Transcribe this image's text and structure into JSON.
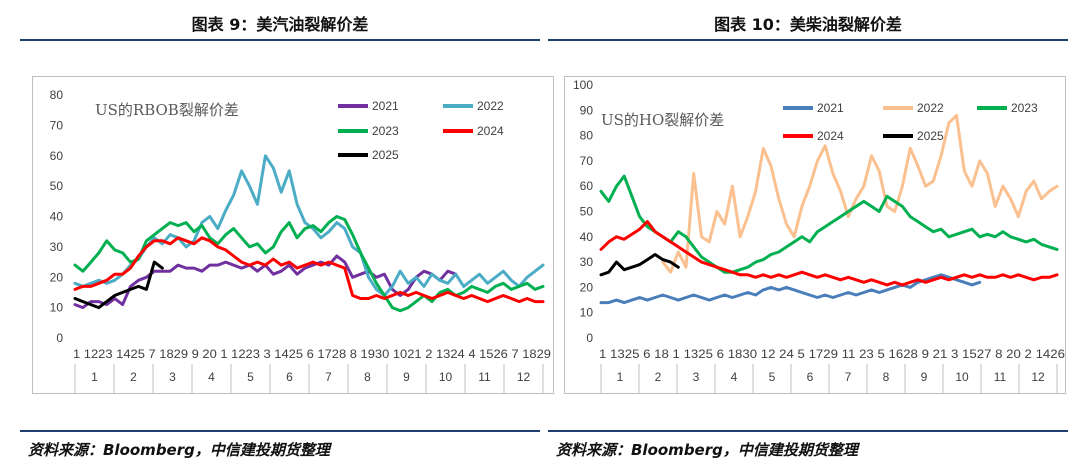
{
  "left": {
    "title": "图表 9：美汽油裂解价差",
    "source": "资料来源：Bloomberg，中信建投期货整理"
  },
  "right": {
    "title": "图表 10：美柴油裂解价差",
    "source": "资料来源：Bloomberg，中信建投期货整理"
  },
  "chart_data": [
    {
      "type": "line",
      "title": "US的RBOB裂解价差",
      "ylim": [
        0,
        80
      ],
      "yticks": [
        0,
        10,
        20,
        30,
        40,
        50,
        60,
        70,
        80
      ],
      "grid": false,
      "legend_position": "top-right",
      "x_tick_labels": [
        "1",
        "12",
        "23",
        "14",
        "25",
        "7",
        "18",
        "29",
        "9",
        "20",
        "1",
        "12",
        "23",
        "3",
        "14",
        "25",
        "6",
        "17",
        "28",
        "8",
        "19",
        "30",
        "10",
        "21",
        "2",
        "13",
        "24",
        "4",
        "15",
        "26",
        "7",
        "18",
        "29"
      ],
      "x_tick_text": "1 1223 1425 7 1829 9 20 1 1223 3 1425 6 1728 8 1930 1021 2 1324 4 1526 7 1829",
      "months": [
        "1",
        "2",
        "3",
        "4",
        "5",
        "6",
        "7",
        "8",
        "9",
        "10",
        "11",
        "12"
      ],
      "series": [
        {
          "name": "2021",
          "color": "#7030a0",
          "values": [
            11,
            10,
            12,
            12,
            11,
            13,
            11,
            17,
            19,
            20,
            22,
            22,
            22,
            24,
            23,
            23,
            22,
            24,
            24,
            25,
            24,
            23,
            24,
            22,
            24,
            21,
            22,
            24,
            21,
            23,
            24,
            25,
            24,
            27,
            25,
            20,
            21,
            22,
            20,
            21,
            16,
            14,
            16,
            20,
            22,
            21,
            19,
            22,
            21,
            null,
            null,
            null,
            null,
            null,
            null,
            null,
            null,
            null,
            null,
            null
          ]
        },
        {
          "name": "2022",
          "color": "#4bacc6",
          "values": [
            18,
            17,
            18,
            19,
            18,
            19,
            21,
            24,
            26,
            30,
            33,
            31,
            34,
            33,
            30,
            32,
            38,
            40,
            36,
            42,
            47,
            55,
            50,
            44,
            60,
            56,
            48,
            55,
            44,
            38,
            36,
            33,
            35,
            38,
            36,
            30,
            28,
            20,
            16,
            14,
            17,
            22,
            18,
            20,
            17,
            21,
            19,
            18,
            21,
            17,
            19,
            21,
            18,
            20,
            22,
            19,
            17,
            20,
            22,
            24
          ]
        },
        {
          "name": "2023",
          "color": "#00b050",
          "values": [
            24,
            22,
            25,
            28,
            32,
            29,
            28,
            25,
            26,
            32,
            34,
            36,
            38,
            37,
            38,
            35,
            37,
            33,
            31,
            34,
            36,
            33,
            30,
            31,
            28,
            30,
            35,
            38,
            33,
            36,
            37,
            35,
            38,
            40,
            39,
            34,
            28,
            23,
            18,
            14,
            10,
            9,
            10,
            12,
            14,
            12,
            15,
            16,
            14,
            15,
            17,
            16,
            15,
            17,
            18,
            16,
            17,
            18,
            16,
            17
          ]
        },
        {
          "name": "2024",
          "color": "#ff0000",
          "values": [
            16,
            17,
            17,
            18,
            19,
            21,
            21,
            23,
            27,
            30,
            32,
            32,
            31,
            33,
            32,
            31,
            33,
            32,
            30,
            29,
            27,
            25,
            24,
            25,
            24,
            26,
            24,
            25,
            23,
            24,
            25,
            24,
            25,
            24,
            23,
            14,
            13,
            13,
            14,
            13,
            14,
            15,
            14,
            15,
            14,
            13,
            14,
            15,
            14,
            13,
            14,
            13,
            12,
            13,
            14,
            13,
            12,
            13,
            12,
            12
          ]
        },
        {
          "name": "2025",
          "color": "#000000",
          "values": [
            13,
            12,
            11,
            10,
            12,
            14,
            15,
            16,
            17,
            16,
            25,
            23,
            null,
            null,
            null,
            null,
            null,
            null,
            null,
            null,
            null,
            null,
            null,
            null,
            null,
            null,
            null,
            null,
            null,
            null,
            null,
            null,
            null,
            null,
            null,
            null,
            null,
            null,
            null,
            null,
            null,
            null,
            null,
            null,
            null,
            null,
            null,
            null,
            null,
            null,
            null,
            null,
            null,
            null,
            null,
            null,
            null,
            null,
            null,
            null
          ]
        }
      ]
    },
    {
      "type": "line",
      "title": "US的HO裂解价差",
      "ylim": [
        0,
        100
      ],
      "yticks": [
        0,
        10,
        20,
        30,
        40,
        50,
        60,
        70,
        80,
        90,
        100
      ],
      "grid": false,
      "legend_position": "top",
      "x_tick_text": "1 1325 6 18 1 1325 6 1830 12 24 5 1729 11 23 5 1628 9 21 3 1527 8 20 2 1426",
      "months": [
        "1",
        "2",
        "3",
        "4",
        "5",
        "6",
        "7",
        "8",
        "9",
        "10",
        "11",
        "12"
      ],
      "series": [
        {
          "name": "2021",
          "color": "#4a7ebb",
          "values": [
            14,
            14,
            15,
            14,
            15,
            16,
            15,
            16,
            17,
            16,
            15,
            16,
            17,
            16,
            15,
            16,
            17,
            16,
            17,
            18,
            17,
            19,
            20,
            19,
            20,
            19,
            18,
            17,
            16,
            17,
            16,
            17,
            18,
            17,
            18,
            19,
            18,
            19,
            20,
            21,
            20,
            22,
            23,
            24,
            25,
            24,
            23,
            22,
            21,
            22,
            null,
            null,
            null,
            null,
            null,
            null,
            null,
            null,
            null,
            null
          ]
        },
        {
          "name": "2022",
          "color": "#fac090",
          "values": [
            null,
            null,
            null,
            null,
            null,
            null,
            null,
            null,
            30,
            26,
            34,
            28,
            65,
            40,
            38,
            50,
            45,
            60,
            40,
            48,
            58,
            75,
            68,
            55,
            45,
            40,
            52,
            60,
            70,
            76,
            65,
            58,
            48,
            55,
            60,
            72,
            66,
            52,
            50,
            60,
            75,
            68,
            60,
            62,
            72,
            85,
            88,
            66,
            60,
            70,
            65,
            52,
            60,
            55,
            48,
            58,
            62,
            55,
            58,
            60
          ]
        },
        {
          "name": "2023",
          "color": "#00b050",
          "values": [
            58,
            54,
            60,
            64,
            56,
            48,
            44,
            42,
            40,
            38,
            42,
            40,
            36,
            32,
            30,
            28,
            26,
            26,
            27,
            28,
            30,
            31,
            33,
            34,
            36,
            38,
            40,
            38,
            42,
            44,
            46,
            48,
            50,
            52,
            54,
            52,
            50,
            56,
            54,
            52,
            48,
            46,
            44,
            42,
            43,
            40,
            41,
            42,
            43,
            40,
            41,
            40,
            42,
            40,
            39,
            38,
            39,
            37,
            36,
            35
          ]
        },
        {
          "name": "2024",
          "color": "#ff0000",
          "values": [
            35,
            38,
            40,
            39,
            41,
            43,
            46,
            42,
            40,
            38,
            36,
            34,
            32,
            30,
            29,
            28,
            27,
            26,
            25,
            25,
            24,
            25,
            24,
            25,
            24,
            25,
            26,
            25,
            24,
            25,
            24,
            23,
            24,
            23,
            22,
            23,
            22,
            21,
            22,
            21,
            22,
            23,
            22,
            23,
            24,
            23,
            24,
            25,
            24,
            25,
            24,
            24,
            25,
            24,
            25,
            24,
            23,
            24,
            24,
            25
          ]
        },
        {
          "name": "2025",
          "color": "#000000",
          "values": [
            25,
            26,
            30,
            27,
            28,
            29,
            31,
            33,
            31,
            30,
            28,
            null,
            null,
            null,
            null,
            null,
            null,
            null,
            null,
            null,
            null,
            null,
            null,
            null,
            null,
            null,
            null,
            null,
            null,
            null,
            null,
            null,
            null,
            null,
            null,
            null,
            null,
            null,
            null,
            null,
            null,
            null,
            null,
            null,
            null,
            null,
            null,
            null,
            null,
            null,
            null,
            null,
            null,
            null,
            null,
            null,
            null,
            null,
            null,
            null
          ]
        }
      ]
    }
  ]
}
